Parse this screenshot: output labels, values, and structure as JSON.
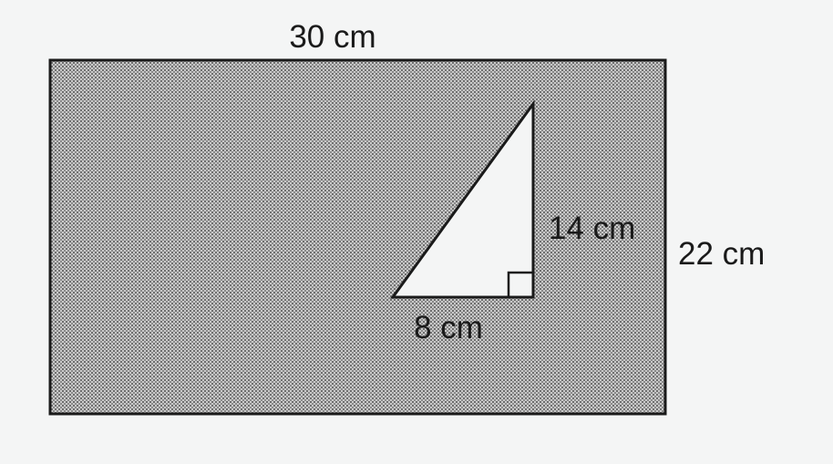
{
  "figure": {
    "rectangle": {
      "width_label": "30 cm",
      "height_label": "22 cm"
    },
    "triangle": {
      "base_label": "8 cm",
      "height_label": "14 cm",
      "right_angle_marker": true
    },
    "colors": {
      "background": "#f4f5f5",
      "shade": "#8d8d8d",
      "stroke": "#1a1a1a",
      "triangle_fill": "#f4f5f5"
    }
  }
}
